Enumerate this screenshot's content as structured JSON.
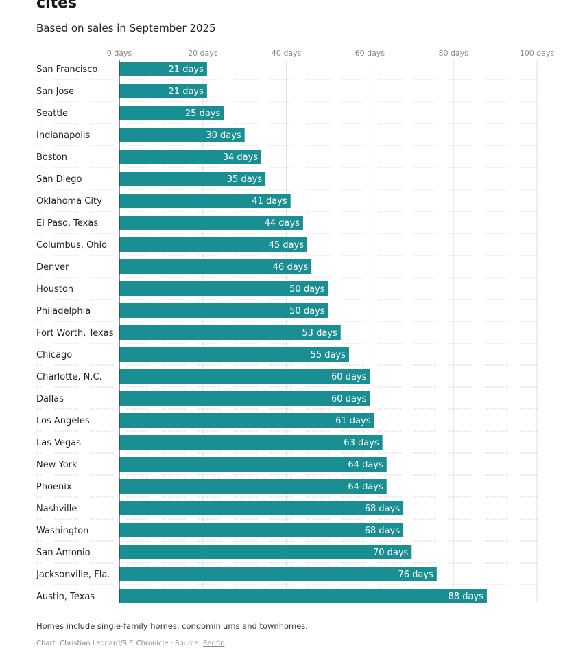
{
  "title": "cites",
  "subtitle": "Based on sales in September 2025",
  "note": "Homes include single-family homes, condominiums and townhomes.",
  "credit": {
    "prefix": "Chart: Christian Leonard/S.F. Chronicle · Source: ",
    "source_link": "Redfin"
  },
  "colors": {
    "bar": "#1a8f93",
    "grid": "#e2e2e2",
    "axis": "#333333"
  },
  "chart_data": {
    "type": "bar",
    "orientation": "horizontal",
    "title": "cites",
    "subtitle": "Based on sales in September 2025",
    "xlim": [
      0,
      100
    ],
    "xticks": [
      0,
      20,
      40,
      60,
      80,
      100
    ],
    "tick_labels": [
      "0 days",
      "20 days",
      "40 days",
      "60 days",
      "80 days",
      "100 days"
    ],
    "categories": [
      "San Francisco",
      "San Jose",
      "Seattle",
      "Indianapolis",
      "Boston",
      "San Diego",
      "Oklahoma City",
      "El Paso, Texas",
      "Columbus, Ohio",
      "Denver",
      "Houston",
      "Philadelphia",
      "Fort Worth, Texas",
      "Chicago",
      "Charlotte, N.C.",
      "Dallas",
      "Los Angeles",
      "Las Vegas",
      "New York",
      "Phoenix",
      "Nashville",
      "Washington",
      "San Antonio",
      "Jacksonville, Fla.",
      "Austin, Texas"
    ],
    "values": [
      21,
      21,
      25,
      30,
      34,
      35,
      41,
      44,
      45,
      46,
      50,
      50,
      53,
      55,
      60,
      60,
      61,
      63,
      64,
      64,
      68,
      68,
      70,
      76,
      88
    ],
    "labels": [
      "21 days",
      "21 days",
      "25 days",
      "30 days",
      "34 days",
      "35 days",
      "41 days",
      "44 days",
      "45 days",
      "46 days",
      "50 days",
      "50 days",
      "53 days",
      "55 days",
      "60 days",
      "60 days",
      "61 days",
      "63 days",
      "64 days",
      "64 days",
      "68 days",
      "68 days",
      "70 days",
      "76 days",
      "88 days"
    ]
  }
}
